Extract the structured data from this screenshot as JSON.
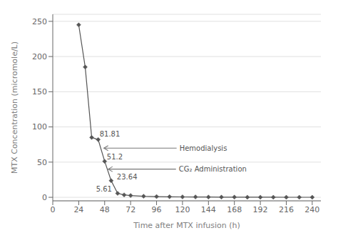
{
  "chart_data": {
    "type": "line",
    "x": [
      24,
      30,
      36,
      42,
      48,
      54,
      60,
      66,
      72,
      84,
      96,
      108,
      120,
      132,
      144,
      156,
      168,
      180,
      192,
      204,
      216,
      228,
      240
    ],
    "values": [
      245,
      185,
      85,
      82,
      51.2,
      23.64,
      5.61,
      3.5,
      2.5,
      1.5,
      1.0,
      0.8,
      0.6,
      0.5,
      0.4,
      0.3,
      0.3,
      0.2,
      0.2,
      0.15,
      0.1,
      0.1,
      0.1
    ],
    "xlabel": "Time after MTX infusion (h)",
    "ylabel": "MTX Concentration (micromole/L)",
    "xlim": [
      0,
      248
    ],
    "ylim": [
      -5,
      260
    ],
    "xticks": [
      0,
      24,
      48,
      72,
      96,
      120,
      144,
      168,
      192,
      216,
      240
    ],
    "yticks": [
      0,
      50,
      100,
      150,
      200,
      250
    ],
    "color": "#555555",
    "marker": "diamond",
    "grid": "y",
    "annotations": [
      "81.81",
      "Hemodialysis",
      "51.2",
      "CG₂ Administration",
      "23.64",
      "5.61"
    ]
  }
}
